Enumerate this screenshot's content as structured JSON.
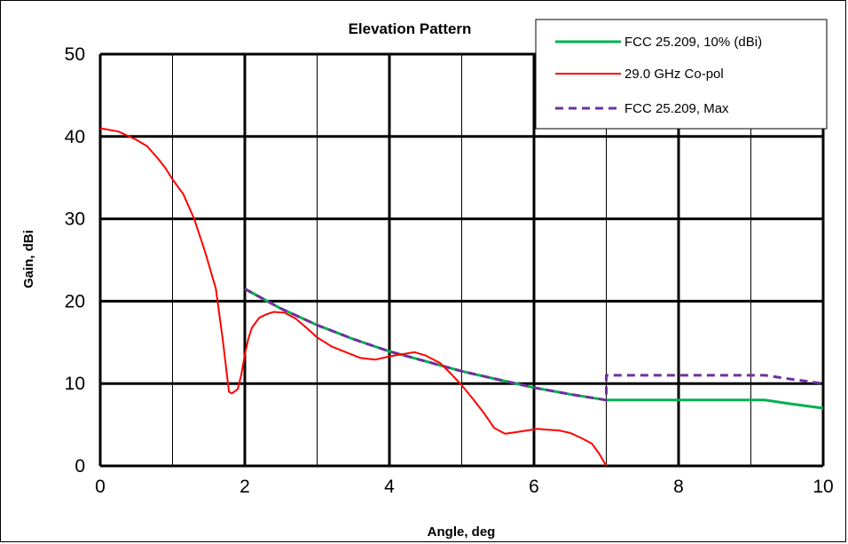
{
  "chart_data": {
    "type": "line",
    "title": "Elevation Pattern",
    "xlabel": "Angle,  deg",
    "ylabel": "Gain, dBi",
    "xlim": [
      0,
      10
    ],
    "ylim": [
      0,
      50
    ],
    "xticks": [
      0,
      2,
      4,
      6,
      8,
      10
    ],
    "yticks": [
      0,
      10,
      20,
      30,
      40,
      50
    ],
    "grid": true,
    "legend_position": "top-right",
    "series": [
      {
        "name": "FCC 25.209, 10% (dBi)",
        "color": "#00b050",
        "dash": "solid",
        "x": [
          2.0,
          2.5,
          3.0,
          3.5,
          4.0,
          4.5,
          5.0,
          5.5,
          6.0,
          6.5,
          7.0,
          7.5,
          8.0,
          8.5,
          9.0,
          9.2,
          9.5,
          10.0
        ],
        "y": [
          21.5,
          19.1,
          17.1,
          15.4,
          13.9,
          12.7,
          11.5,
          10.5,
          9.5,
          8.7,
          8.0,
          8.0,
          8.0,
          8.0,
          8.0,
          8.0,
          7.6,
          7.0
        ]
      },
      {
        "name": "29.0 GHz Co-pol",
        "color": "#ff0000",
        "dash": "solid",
        "x": [
          0.0,
          0.25,
          0.5,
          0.65,
          0.8,
          0.9,
          1.0,
          1.15,
          1.3,
          1.45,
          1.6,
          1.7,
          1.78,
          1.82,
          1.9,
          1.95,
          2.0,
          2.05,
          2.1,
          2.2,
          2.3,
          2.4,
          2.55,
          2.7,
          2.85,
          3.0,
          3.2,
          3.4,
          3.6,
          3.8,
          4.0,
          4.2,
          4.35,
          4.5,
          4.7,
          4.85,
          5.0,
          5.15,
          5.3,
          5.45,
          5.6,
          5.75,
          5.9,
          6.05,
          6.2,
          6.35,
          6.5,
          6.65,
          6.8,
          6.9,
          7.0
        ],
        "y": [
          41.0,
          40.6,
          39.6,
          38.8,
          37.3,
          36.2,
          34.8,
          33.0,
          30.0,
          26.0,
          21.5,
          15.0,
          9.0,
          8.8,
          9.3,
          11.0,
          13.5,
          15.5,
          16.8,
          18.0,
          18.4,
          18.7,
          18.6,
          17.9,
          16.8,
          15.6,
          14.5,
          13.8,
          13.1,
          12.9,
          13.3,
          13.6,
          13.8,
          13.4,
          12.5,
          11.2,
          9.8,
          8.2,
          6.5,
          4.6,
          3.9,
          4.1,
          4.3,
          4.5,
          4.4,
          4.3,
          4.0,
          3.4,
          2.7,
          1.5,
          0.0
        ]
      },
      {
        "name": "FCC 25.209, Max",
        "color": "#7030a0",
        "dash": "dashed",
        "x": [
          2.0,
          2.5,
          3.0,
          3.5,
          4.0,
          4.5,
          5.0,
          5.5,
          6.0,
          6.5,
          7.0,
          7.0,
          7.5,
          8.0,
          8.5,
          9.0,
          9.2,
          9.5,
          10.0
        ],
        "y": [
          21.5,
          19.1,
          17.1,
          15.4,
          13.9,
          12.7,
          11.5,
          10.5,
          9.5,
          8.7,
          8.0,
          11.0,
          11.0,
          11.0,
          11.0,
          11.0,
          11.0,
          10.6,
          10.0
        ]
      }
    ]
  }
}
